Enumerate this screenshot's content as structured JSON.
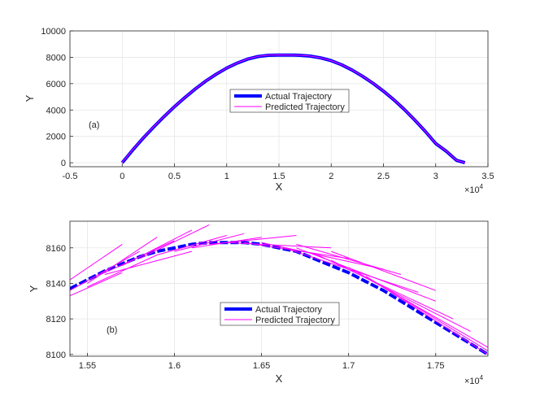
{
  "chart_data": [
    {
      "type": "line",
      "panel_label": "(a)",
      "xlabel": "X",
      "ylabel": "Y",
      "x_exponent_label": "×10",
      "x_exponent_power": "4",
      "xlim": [
        -0.5,
        3.5
      ],
      "ylim": [
        -300,
        10000
      ],
      "x_scale_factor": 10000,
      "xticks": [
        -0.5,
        0,
        0.5,
        1,
        1.5,
        2,
        2.5,
        3,
        3.5
      ],
      "xtick_labels": [
        "-0.5",
        "0",
        "0.5",
        "1",
        "1.5",
        "2",
        "2.5",
        "3",
        "3.5"
      ],
      "yticks": [
        0,
        2000,
        4000,
        6000,
        8000,
        10000
      ],
      "ytick_labels": [
        "0",
        "2000",
        "4000",
        "6000",
        "8000",
        "10000"
      ],
      "grid": true,
      "legend": {
        "placement": "center",
        "entries": [
          "Actual Trajectory",
          "Predicted Trajectory"
        ]
      },
      "series": [
        {
          "name": "Actual Trajectory",
          "color": "#0000ff",
          "x": [
            0,
            1000,
            2000,
            3000,
            4000,
            5000,
            6000,
            7000,
            8000,
            9000,
            10000,
            11000,
            12000,
            13000,
            14000,
            15000,
            16000,
            16400,
            17000,
            18000,
            19000,
            20000,
            21000,
            22000,
            23000,
            24000,
            25000,
            26000,
            27000,
            28000,
            29000,
            30000,
            31000,
            32000,
            32800
          ],
          "y": [
            0,
            960,
            1860,
            2700,
            3500,
            4250,
            4950,
            5600,
            6200,
            6720,
            7180,
            7560,
            7860,
            8060,
            8150,
            8170,
            8165,
            8160,
            8150,
            8090,
            7950,
            7740,
            7430,
            7030,
            6560,
            6030,
            5430,
            4770,
            4040,
            3240,
            2380,
            1460,
            880,
            180,
            0
          ]
        },
        {
          "name": "Predicted Trajectory",
          "color": "#ff00ff",
          "x": [
            0,
            1000,
            2000,
            3000,
            4000,
            5000,
            6000,
            7000,
            8000,
            9000,
            10000,
            11000,
            12000,
            13000,
            14000,
            15000,
            16000,
            16400,
            17000,
            18000,
            19000,
            20000,
            21000,
            22000,
            23000,
            24000,
            25000,
            26000,
            27000,
            28000,
            29000,
            30000,
            31000,
            32000,
            32800
          ],
          "y": [
            20,
            980,
            1880,
            2720,
            3510,
            4260,
            4960,
            5610,
            6210,
            6730,
            7190,
            7570,
            7870,
            8070,
            8160,
            8180,
            8172,
            8168,
            8155,
            8095,
            7955,
            7745,
            7435,
            7035,
            6565,
            6035,
            5435,
            4775,
            4045,
            3245,
            2385,
            1465,
            885,
            185,
            5
          ]
        }
      ]
    },
    {
      "type": "line",
      "panel_label": "(b)",
      "xlabel": "X",
      "ylabel": "Y",
      "x_exponent_label": "×10",
      "x_exponent_power": "4",
      "xlim": [
        1.54,
        1.78
      ],
      "ylim": [
        8099,
        8175
      ],
      "x_scale_factor": 10000,
      "xticks": [
        1.55,
        1.6,
        1.65,
        1.7,
        1.75
      ],
      "xtick_labels": [
        "1.55",
        "1.6",
        "1.65",
        "1.7",
        "1.75"
      ],
      "yticks": [
        8100,
        8120,
        8140,
        8160
      ],
      "ytick_labels": [
        "8100",
        "8120",
        "8140",
        "8160"
      ],
      "grid": true,
      "legend": {
        "placement": "lower-center",
        "entries": [
          "Actual Trajectory",
          "Predicted Trajectory"
        ]
      },
      "actual_trajectory": {
        "name": "Actual Trajectory",
        "color": "#0000ff",
        "x": [
          15400,
          15500,
          15600,
          15700,
          15800,
          15900,
          16000,
          16100,
          16200,
          16300,
          16400,
          16500,
          16600,
          16700,
          16800,
          16900,
          17000,
          17100,
          17200,
          17300,
          17400,
          17500,
          17600,
          17700,
          17800
        ],
        "y": [
          8137,
          8142,
          8147,
          8151,
          8155,
          8158,
          8160,
          8162,
          8163,
          8163,
          8163,
          8162,
          8160,
          8158,
          8154,
          8150,
          8146,
          8141,
          8136,
          8130,
          8124,
          8118,
          8112,
          8106,
          8100
        ]
      },
      "predicted_segments": [
        {
          "x": [
            15400,
            15700
          ],
          "y": [
            8142,
            8162
          ]
        },
        {
          "x": [
            15400,
            15800
          ],
          "y": [
            8136,
            8158
          ]
        },
        {
          "x": [
            15400,
            15700
          ],
          "y": [
            8133,
            8146
          ]
        },
        {
          "x": [
            15500,
            15900
          ],
          "y": [
            8140,
            8166
          ]
        },
        {
          "x": [
            15500,
            15900
          ],
          "y": [
            8138,
            8156
          ]
        },
        {
          "x": [
            15600,
            16000
          ],
          "y": [
            8146,
            8164
          ]
        },
        {
          "x": [
            15700,
            16100
          ],
          "y": [
            8150,
            8170
          ]
        },
        {
          "x": [
            15600,
            16100
          ],
          "y": [
            8145,
            8158
          ]
        },
        {
          "x": [
            15800,
            16200
          ],
          "y": [
            8154,
            8173
          ]
        },
        {
          "x": [
            15900,
            16300
          ],
          "y": [
            8156,
            8167
          ]
        },
        {
          "x": [
            16000,
            16400
          ],
          "y": [
            8158,
            8168
          ]
        },
        {
          "x": [
            16100,
            16500
          ],
          "y": [
            8160,
            8166
          ]
        },
        {
          "x": [
            16200,
            16700
          ],
          "y": [
            8162,
            8167
          ]
        },
        {
          "x": [
            16300,
            16900
          ],
          "y": [
            8163,
            8160
          ]
        },
        {
          "x": [
            16400,
            17000
          ],
          "y": [
            8163,
            8154
          ]
        },
        {
          "x": [
            16500,
            17200
          ],
          "y": [
            8163,
            8148
          ]
        },
        {
          "x": [
            16600,
            17400
          ],
          "y": [
            8161,
            8135
          ]
        },
        {
          "x": [
            16700,
            17500
          ],
          "y": [
            8160,
            8130
          ]
        },
        {
          "x": [
            16800,
            17600
          ],
          "y": [
            8157,
            8120
          ]
        },
        {
          "x": [
            16900,
            17700
          ],
          "y": [
            8153,
            8113
          ]
        },
        {
          "x": [
            17000,
            17800
          ],
          "y": [
            8149,
            8104
          ]
        },
        {
          "x": [
            17100,
            17800
          ],
          "y": [
            8144,
            8100
          ]
        },
        {
          "x": [
            17300,
            17800
          ],
          "y": [
            8132,
            8102
          ]
        },
        {
          "x": [
            16700,
            17300
          ],
          "y": [
            8162,
            8145
          ]
        },
        {
          "x": [
            16900,
            17500
          ],
          "y": [
            8158,
            8136
          ]
        }
      ]
    }
  ]
}
